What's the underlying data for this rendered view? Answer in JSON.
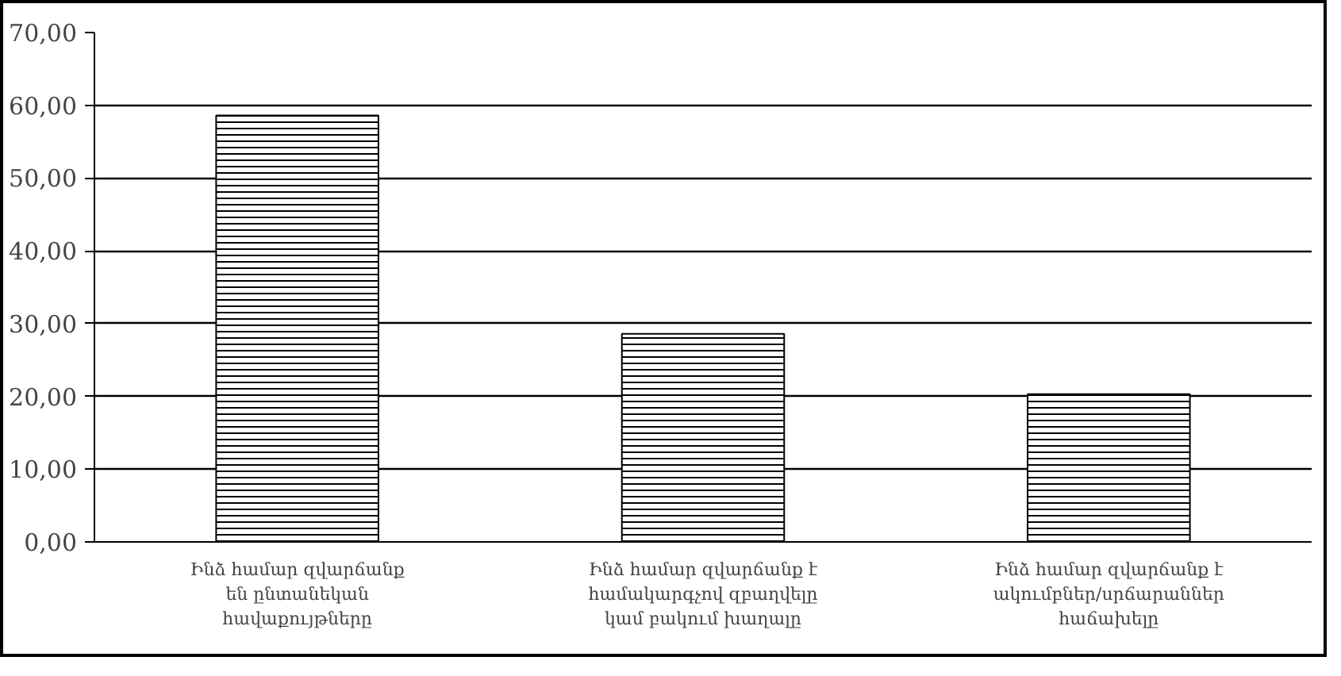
{
  "chart_data": {
    "type": "bar",
    "categories": [
      "Ինձ համար զվարճանք\nեն ընտանեկան\nհավաքույթները",
      "Ինձ համար զվարճանք է\nհամակարգչով զբաղվելը\nկամ բակում խաղալը",
      "Ինձ համար զվարճանք է\nակումբներ/սրճարաններ\nհաճախելը"
    ],
    "values": [
      58.6,
      28.6,
      20.3
    ],
    "color": "#000000",
    "ylim": [
      0,
      70
    ],
    "yticks": [
      {
        "value": 0,
        "label": "0,00"
      },
      {
        "value": 10,
        "label": "10,00"
      },
      {
        "value": 20,
        "label": "20,00"
      },
      {
        "value": 30,
        "label": "30,00"
      },
      {
        "value": 40,
        "label": "40,00"
      },
      {
        "value": 50,
        "label": "50,00"
      },
      {
        "value": 60,
        "label": "60,00"
      },
      {
        "value": 70,
        "label": "70,00"
      }
    ],
    "grid": "y"
  }
}
